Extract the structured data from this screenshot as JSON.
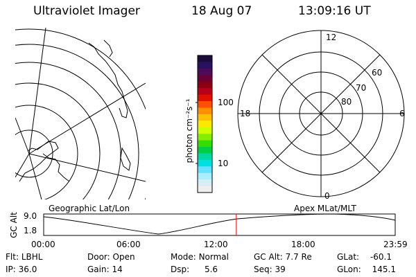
{
  "header": {
    "title": "Ultraviolet Imager",
    "date": "18 Aug 07",
    "time": "13:09:16 UT"
  },
  "colorbar": {
    "unit_label": "photon cm⁻²s⁻¹",
    "ticks": [
      {
        "value": 100,
        "label": "100"
      },
      {
        "value": 10,
        "label": "10"
      }
    ],
    "colors": [
      "#1a0d3d",
      "#2a1060",
      "#4d0a5a",
      "#6a003a",
      "#8a0012",
      "#b8001a",
      "#e01000",
      "#ff5000",
      "#ff9000",
      "#ffc000",
      "#ffe800",
      "#ccff00",
      "#88ee00",
      "#33dd00",
      "#00cc44",
      "#00d8a0",
      "#00e0e0",
      "#66e0ff",
      "#aaeeff",
      "#d8eef6",
      "#eeeeee"
    ]
  },
  "left_map": {
    "label": "Geographic Lat/Lon"
  },
  "right_map": {
    "label": "Apex MLat/MLT",
    "mlt_labels": {
      "top": "12",
      "left": "18",
      "right": "6",
      "bottom": "0"
    },
    "mlat_labels": [
      "60",
      "70",
      "80"
    ]
  },
  "altitude_plot": {
    "ylabel": "GC Alt",
    "ytick_top": "9.0",
    "ytick_bottom": "1.8",
    "xticks": [
      "00:00",
      "06:00",
      "12:00",
      "18:00",
      "23:59"
    ],
    "current_time_fraction": 0.5479,
    "line_color": "#ff0000"
  },
  "status": {
    "filter_label": "Flt:",
    "filter_value": "LBHL",
    "ip_label": "IP:",
    "ip_value": "36.0",
    "door_label": "Door:",
    "door_value": "Open",
    "gain_label": "Gain:",
    "gain_value": "14",
    "mode_label": "Mode:",
    "mode_value": "Normal",
    "dsp_label": "Dsp:",
    "dsp_value": "5.6",
    "gcalt_label": "GC Alt:",
    "gcalt_value": "7.7 Re",
    "seq_label": "Seq:",
    "seq_value": "39",
    "glat_label": "GLat:",
    "glat_value": "-60.1",
    "glon_label": "GLon:",
    "glon_value": "145.1"
  }
}
